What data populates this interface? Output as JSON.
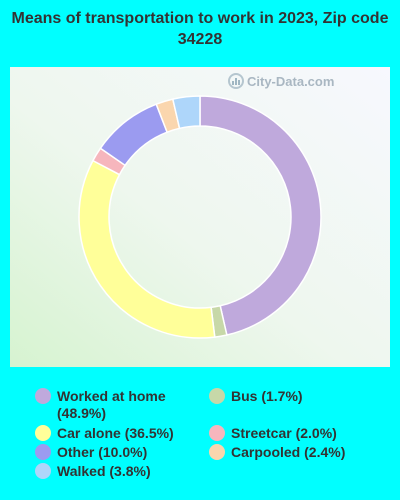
{
  "chart_data": {
    "type": "pie",
    "title": "Means of transportation to work in 2023, Zip code 34228",
    "slices": [
      {
        "label": "Worked at home",
        "legend": "Worked at home (48.9%)",
        "value": 48.9,
        "color": "#BFA9DC"
      },
      {
        "label": "Bus",
        "legend": "Bus (1.7%)",
        "value": 1.7,
        "color": "#C7D8A8"
      },
      {
        "label": "Car alone",
        "legend": "Car alone (36.5%)",
        "value": 36.5,
        "color": "#FFFF99"
      },
      {
        "label": "Streetcar",
        "legend": "Streetcar (2.0%)",
        "value": 2.0,
        "color": "#F6B6BD"
      },
      {
        "label": "Other",
        "legend": "Other (10.0%)",
        "value": 10.0,
        "color": "#9B9BF0"
      },
      {
        "label": "Carpooled",
        "legend": "Carpooled (2.4%)",
        "value": 2.4,
        "color": "#FAD6AE"
      },
      {
        "label": "Walked",
        "legend": "Walked (3.8%)",
        "value": 3.8,
        "color": "#AED6FA"
      }
    ],
    "legend_position": "bottom"
  },
  "watermark": "City-Data.com",
  "icons": {
    "watermark": "city-data-logo-icon"
  }
}
